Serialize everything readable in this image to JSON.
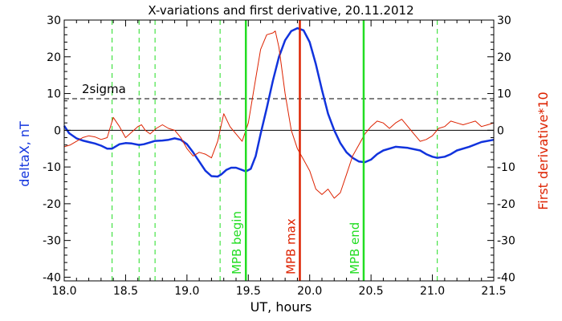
{
  "chart_data": {
    "type": "line",
    "title": "X-variations and first derivative, 20.11.2012",
    "xlabel": "UT, hours",
    "ylabel_left": "deltaX, nT",
    "ylabel_right": "First derivative*10",
    "xlim": [
      18.0,
      21.5
    ],
    "ylim": [
      -41,
      30
    ],
    "x_ticks": [
      18.0,
      18.5,
      19.0,
      19.5,
      20.0,
      20.5,
      21.0,
      21.5
    ],
    "x_tick_labels": [
      "18.0",
      "18.5",
      "19.0",
      "19.5",
      "20.0",
      "20.5",
      "21.0",
      "21.5"
    ],
    "y_ticks": [
      30,
      20,
      10,
      0,
      -10,
      -20,
      -30,
      -40
    ],
    "y_tick_labels": [
      "30",
      "20",
      "10",
      "0",
      "-10",
      "-20",
      "-30",
      "-40"
    ],
    "threshold": {
      "label": "2sigma",
      "y": 8.6
    },
    "zero_line": 0,
    "markers": [
      {
        "label": "MPB begin",
        "x": 19.48,
        "color": "#22dd22"
      },
      {
        "label": "MPB max",
        "x": 19.92,
        "color": "#dd2200"
      },
      {
        "label": "MPB end",
        "x": 20.44,
        "color": "#22dd22"
      }
    ],
    "dashed_markers": [
      18.39,
      18.61,
      18.74,
      19.27,
      21.04
    ],
    "series": [
      {
        "axis": "left",
        "color": "#1133dd",
        "x": [
          18.0,
          18.04,
          18.1,
          18.15,
          18.2,
          18.25,
          18.3,
          18.35,
          18.39,
          18.45,
          18.5,
          18.55,
          18.61,
          18.65,
          18.7,
          18.74,
          18.8,
          18.85,
          18.9,
          18.95,
          19.0,
          19.05,
          19.1,
          19.15,
          19.2,
          19.25,
          19.28,
          19.32,
          19.36,
          19.4,
          19.45,
          19.48,
          19.52,
          19.56,
          19.6,
          19.65,
          19.7,
          19.75,
          19.8,
          19.85,
          19.9,
          19.95,
          20.0,
          20.05,
          20.1,
          20.15,
          20.2,
          20.25,
          20.3,
          20.35,
          20.4,
          20.45,
          20.5,
          20.55,
          20.6,
          20.7,
          20.8,
          20.9,
          20.95,
          21.0,
          21.04,
          21.1,
          21.15,
          21.2,
          21.3,
          21.4,
          21.5
        ],
        "y": [
          1.2,
          -0.8,
          -2.2,
          -2.8,
          -3.2,
          -3.6,
          -4.2,
          -5.0,
          -5.0,
          -3.8,
          -3.5,
          -3.6,
          -4.0,
          -3.8,
          -3.3,
          -2.9,
          -2.8,
          -2.6,
          -2.2,
          -2.6,
          -3.8,
          -6.0,
          -8.5,
          -11.0,
          -12.5,
          -12.6,
          -12.0,
          -10.8,
          -10.2,
          -10.2,
          -10.8,
          -11.2,
          -10.5,
          -7.0,
          -1.0,
          6.0,
          13.5,
          20.0,
          24.5,
          27.0,
          27.8,
          27.2,
          24.0,
          18.0,
          11.0,
          4.5,
          0.0,
          -3.5,
          -6.0,
          -7.5,
          -8.5,
          -8.7,
          -8.0,
          -6.5,
          -5.5,
          -4.5,
          -4.8,
          -5.5,
          -6.5,
          -7.2,
          -7.5,
          -7.2,
          -6.5,
          -5.5,
          -4.5,
          -3.2,
          -2.6
        ]
      },
      {
        "axis": "right",
        "color": "#dd2200",
        "x": [
          18.0,
          18.05,
          18.1,
          18.15,
          18.2,
          18.25,
          18.3,
          18.35,
          18.4,
          18.45,
          18.5,
          18.55,
          18.6,
          18.63,
          18.66,
          18.7,
          18.75,
          18.8,
          18.85,
          18.9,
          18.95,
          19.0,
          19.05,
          19.1,
          19.15,
          19.2,
          19.25,
          19.3,
          19.35,
          19.4,
          19.45,
          19.5,
          19.55,
          19.6,
          19.65,
          19.7,
          19.72,
          19.75,
          19.8,
          19.85,
          19.9,
          19.95,
          20.0,
          20.05,
          20.1,
          20.15,
          20.2,
          20.25,
          20.3,
          20.35,
          20.4,
          20.45,
          20.5,
          20.55,
          20.6,
          20.65,
          20.7,
          20.75,
          20.8,
          20.85,
          20.9,
          20.95,
          21.0,
          21.05,
          21.1,
          21.15,
          21.2,
          21.25,
          21.3,
          21.35,
          21.4,
          21.45,
          21.5
        ],
        "y": [
          -4.5,
          -4.0,
          -3.0,
          -2.0,
          -1.5,
          -1.8,
          -2.5,
          -2.0,
          3.5,
          1.0,
          -2.0,
          -0.5,
          1.0,
          1.5,
          0.0,
          -1.0,
          0.5,
          1.5,
          0.5,
          0.0,
          -2.0,
          -5.0,
          -7.0,
          -6.0,
          -6.5,
          -7.5,
          -3.0,
          4.5,
          1.0,
          -1.0,
          -3.0,
          2.0,
          12.0,
          22.0,
          26.0,
          26.5,
          27.0,
          22.5,
          10.0,
          0.0,
          -5.0,
          -8.0,
          -11.0,
          -16.0,
          -17.5,
          -16.0,
          -18.5,
          -17.0,
          -12.0,
          -7.0,
          -4.0,
          -1.0,
          1.0,
          2.5,
          2.0,
          0.5,
          2.0,
          3.0,
          1.0,
          -1.0,
          -3.0,
          -2.5,
          -1.5,
          0.5,
          1.0,
          2.5,
          2.0,
          1.5,
          2.0,
          2.5,
          1.0,
          1.5,
          2.0
        ]
      }
    ]
  }
}
